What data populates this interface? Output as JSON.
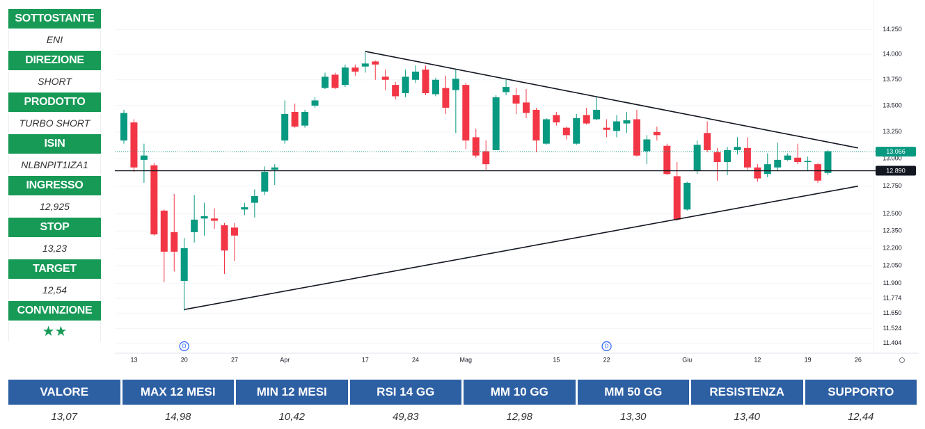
{
  "sidebar": [
    {
      "label": "SOTTOSTANTE",
      "value": "ENI"
    },
    {
      "label": "DIREZIONE",
      "value": "SHORT"
    },
    {
      "label": "PRODOTTO",
      "value": "TURBO SHORT"
    },
    {
      "label": "ISIN",
      "value": "NLBNPIT1IZA1"
    },
    {
      "label": "INGRESSO",
      "value": "12,925"
    },
    {
      "label": "STOP",
      "value": "13,23"
    },
    {
      "label": "TARGET",
      "value": "12,54"
    },
    {
      "label": "CONVINZIONE",
      "value": "★★"
    }
  ],
  "table": {
    "headers": [
      "VALORE",
      "MAX 12 MESI",
      "MIN 12 MESI",
      "RSI 14 GG",
      "MM 10 GG",
      "MM 50 GG",
      "RESISTENZA",
      "SUPPORTO"
    ],
    "values": [
      "13,07",
      "14,98",
      "10,42",
      "49,83",
      "12,98",
      "13,30",
      "13,40",
      "12,44"
    ]
  },
  "chart_data": {
    "type": "candlestick",
    "up_color": "#089981",
    "down_color": "#f23645",
    "log_scale": true,
    "grid": true,
    "ylim": [
      11.34,
      14.48
    ],
    "yticks": [
      {
        "value": 14.25,
        "label": "14.250"
      },
      {
        "value": 14.0,
        "label": "14.000"
      },
      {
        "value": 13.75,
        "label": "13.750"
      },
      {
        "value": 13.5,
        "label": "13.500"
      },
      {
        "value": 13.25,
        "label": "13.250"
      },
      {
        "value": 13.0,
        "label": "13.000"
      },
      {
        "value": 12.75,
        "label": "12.750"
      },
      {
        "value": 12.5,
        "label": "12.500"
      },
      {
        "value": 12.35,
        "label": "12.350"
      },
      {
        "value": 12.2,
        "label": "12.200"
      },
      {
        "value": 12.05,
        "label": "12.050"
      },
      {
        "value": 11.9,
        "label": "11.900"
      },
      11.774,
      {
        "value": 11.65,
        "label": "11.650"
      },
      11.524,
      11.404
    ],
    "categories": [
      null,
      "13",
      null,
      null,
      null,
      null,
      "20",
      null,
      null,
      null,
      null,
      "27",
      null,
      null,
      null,
      null,
      "Apr",
      null,
      null,
      null,
      null,
      null,
      null,
      null,
      "17",
      null,
      null,
      null,
      null,
      "24",
      null,
      null,
      null,
      null,
      "Mag",
      null,
      null,
      null,
      null,
      null,
      null,
      null,
      null,
      "15",
      null,
      null,
      null,
      null,
      "22",
      null,
      null,
      null,
      null,
      null,
      null,
      null,
      "Giu",
      null,
      null,
      null,
      null,
      null,
      null,
      "12",
      null,
      null,
      null,
      null,
      "19",
      null,
      null,
      null,
      null,
      "26"
    ],
    "open": [
      13.17,
      13.34,
      12.99,
      12.94,
      12.53,
      12.34,
      11.92,
      12.34,
      12.46,
      12.46,
      12.4,
      12.38,
      12.54,
      12.6,
      12.7,
      12.9,
      13.17,
      13.44,
      13.31,
      13.5,
      13.67,
      13.8,
      13.7,
      13.87,
      13.88,
      13.93,
      13.78,
      13.7,
      13.62,
      13.75,
      13.85,
      13.61,
      13.67,
      13.65,
      13.7,
      13.2,
      13.07,
      13.08,
      13.63,
      13.6,
      13.53,
      13.46,
      13.14,
      13.41,
      13.29,
      13.14,
      13.41,
      13.37,
      13.29,
      13.26,
      13.33,
      13.37,
      13.07,
      13.25,
      13.12,
      12.84,
      12.54,
      12.89,
      13.24,
      13.06,
      12.97,
      13.08,
      13.1,
      12.92,
      12.86,
      12.92,
      12.99,
      13.01,
      12.97,
      12.95,
      12.87,
      null,
      null,
      null
    ],
    "high": [
      13.46,
      13.37,
      13.14,
      12.96,
      12.54,
      12.68,
      12.29,
      12.67,
      12.6,
      12.55,
      12.42,
      12.42,
      12.6,
      12.72,
      12.93,
      12.95,
      13.55,
      13.52,
      13.46,
      13.58,
      13.82,
      13.82,
      13.9,
      13.9,
      14.03,
      13.94,
      13.85,
      13.73,
      13.85,
      13.89,
      13.89,
      13.77,
      13.79,
      13.85,
      13.72,
      13.28,
      13.17,
      13.6,
      13.75,
      13.67,
      13.66,
      13.48,
      13.38,
      13.44,
      13.3,
      13.42,
      13.48,
      13.58,
      13.37,
      13.41,
      13.44,
      13.46,
      13.22,
      13.3,
      13.14,
      12.97,
      12.79,
      13.17,
      13.35,
      13.1,
      13.11,
      13.2,
      13.2,
      12.95,
      13.05,
      13.15,
      13.05,
      13.14,
      13.02,
      12.96,
      13.08,
      null,
      null,
      null
    ],
    "low": [
      13.14,
      12.88,
      12.78,
      12.31,
      11.91,
      12.0,
      11.67,
      12.25,
      12.31,
      12.37,
      11.98,
      12.09,
      12.49,
      12.47,
      12.67,
      12.76,
      13.14,
      13.29,
      13.29,
      13.48,
      13.66,
      13.66,
      13.68,
      13.79,
      13.82,
      13.75,
      13.65,
      13.56,
      13.58,
      13.72,
      13.6,
      13.59,
      13.42,
      13.24,
      13.09,
      13.01,
      12.9,
      13.08,
      13.6,
      13.42,
      13.38,
      13.06,
      13.13,
      13.31,
      13.18,
      13.13,
      13.32,
      13.36,
      13.2,
      13.2,
      13.24,
      13.02,
      12.95,
      13.17,
      12.85,
      12.44,
      12.53,
      12.86,
      13.06,
      12.8,
      12.85,
      13.04,
      12.9,
      12.79,
      12.83,
      12.89,
      12.98,
      12.95,
      12.89,
      12.78,
      12.85,
      null,
      null,
      null
    ],
    "close": [
      13.43,
      12.92,
      13.03,
      12.32,
      12.17,
      12.17,
      12.2,
      12.45,
      12.48,
      12.44,
      12.18,
      12.31,
      12.56,
      12.66,
      12.88,
      12.92,
      13.42,
      13.3,
      13.44,
      13.55,
      13.78,
      13.67,
      13.87,
      13.83,
      13.91,
      13.9,
      13.75,
      13.59,
      13.78,
      13.83,
      13.62,
      13.75,
      13.48,
      13.76,
      13.17,
      13.03,
      12.95,
      13.58,
      13.68,
      13.52,
      13.43,
      13.17,
      13.37,
      13.34,
      13.22,
      13.38,
      13.33,
      13.46,
      13.27,
      13.35,
      13.36,
      13.03,
      13.18,
      13.22,
      12.86,
      12.45,
      12.78,
      13.13,
      13.08,
      12.97,
      13.08,
      13.11,
      12.92,
      12.82,
      12.95,
      12.99,
      13.03,
      12.97,
      12.98,
      12.8,
      13.07,
      null,
      null,
      null
    ],
    "trendlines": [
      {
        "from": "17",
        "to": "26",
        "values": [
          14.03,
          13.1
        ]
      },
      {
        "from": "20",
        "to": "26",
        "values": [
          11.68,
          12.75
        ]
      }
    ],
    "price_lines": [
      {
        "value": 13.066,
        "label": "13.066",
        "style": "dotted",
        "color": "#089981"
      },
      {
        "value": 12.89,
        "label": "12.890",
        "style": "solid",
        "color": "#131722"
      }
    ],
    "markers": [
      {
        "at": "20",
        "label": "D"
      },
      {
        "at": "22",
        "label": "D"
      }
    ]
  }
}
